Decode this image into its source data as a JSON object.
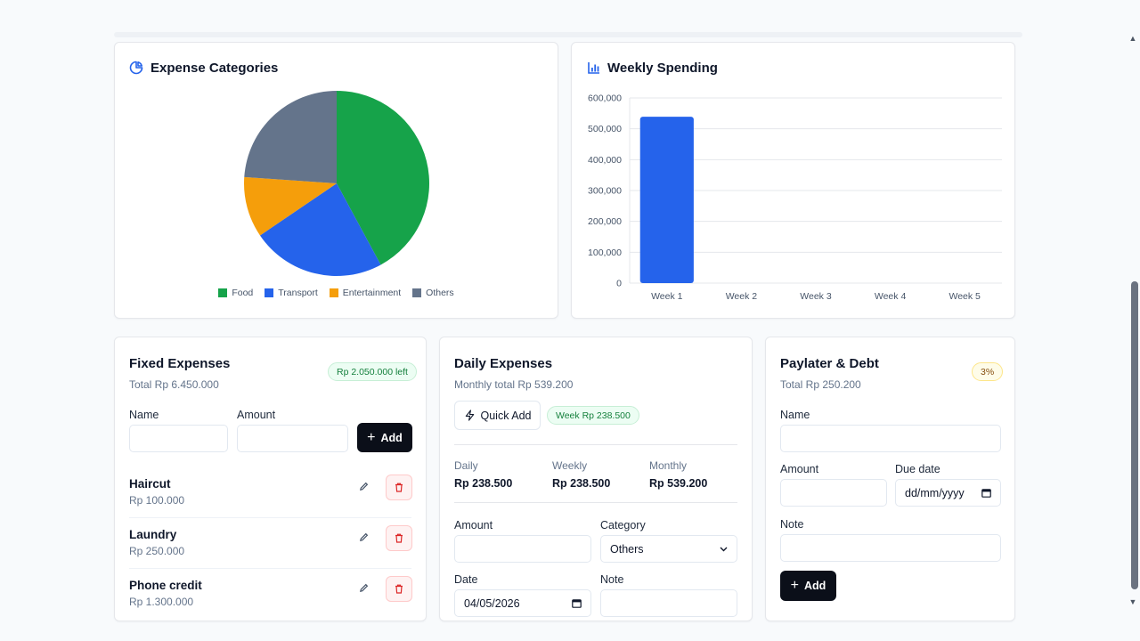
{
  "expense_categories": {
    "title": "Expense Categories",
    "icon": "pie-chart-icon"
  },
  "weekly_spending": {
    "title": "Weekly Spending",
    "icon": "bar-chart-icon"
  },
  "chart_data": [
    {
      "type": "pie",
      "title": "Expense Categories",
      "categories": [
        "Food",
        "Transport",
        "Entertainment",
        "Others"
      ],
      "values": [
        42.1,
        23.4,
        10.6,
        23.9
      ],
      "colors": [
        "#16a34a",
        "#2563eb",
        "#f59e0b",
        "#64748b"
      ],
      "legend": "bottom"
    },
    {
      "type": "bar",
      "title": "Weekly Spending",
      "categories": [
        "Week 1",
        "Week 2",
        "Week 3",
        "Week 4",
        "Week 5"
      ],
      "values": [
        539200,
        0,
        0,
        0,
        0
      ],
      "ylim": [
        0,
        600000
      ],
      "yticks": [
        "0",
        "100,000",
        "200,000",
        "300,000",
        "400,000",
        "500,000",
        "600,000"
      ],
      "color": "#2563eb",
      "grid": true
    }
  ],
  "fixed": {
    "title": "Fixed Expenses",
    "total": "Total Rp 6.450.000",
    "badge": "Rp 2.050.000 left",
    "name_label": "Name",
    "amount_label": "Amount",
    "add_label": "Add",
    "items": [
      {
        "name": "Haircut",
        "amount": "Rp 100.000"
      },
      {
        "name": "Laundry",
        "amount": "Rp 250.000"
      },
      {
        "name": "Phone credit",
        "amount": "Rp 1.300.000"
      }
    ]
  },
  "daily": {
    "title": "Daily Expenses",
    "total": "Monthly total Rp 539.200",
    "quick_add": "Quick Add",
    "week_badge": "Week Rp 238.500",
    "stats": [
      {
        "label": "Daily",
        "value": "Rp 238.500"
      },
      {
        "label": "Weekly",
        "value": "Rp 238.500"
      },
      {
        "label": "Monthly",
        "value": "Rp 539.200"
      }
    ],
    "amount_label": "Amount",
    "category_label": "Category",
    "category_value": "Others",
    "date_label": "Date",
    "date_value": "04/05/2026",
    "note_label": "Note"
  },
  "paylater": {
    "title": "Paylater & Debt",
    "total": "Total Rp 250.200",
    "badge": "3%",
    "name_label": "Name",
    "amount_label": "Amount",
    "due_label": "Due date",
    "due_placeholder": "dd/mm/yyyy",
    "note_label": "Note",
    "add_label": "Add"
  }
}
